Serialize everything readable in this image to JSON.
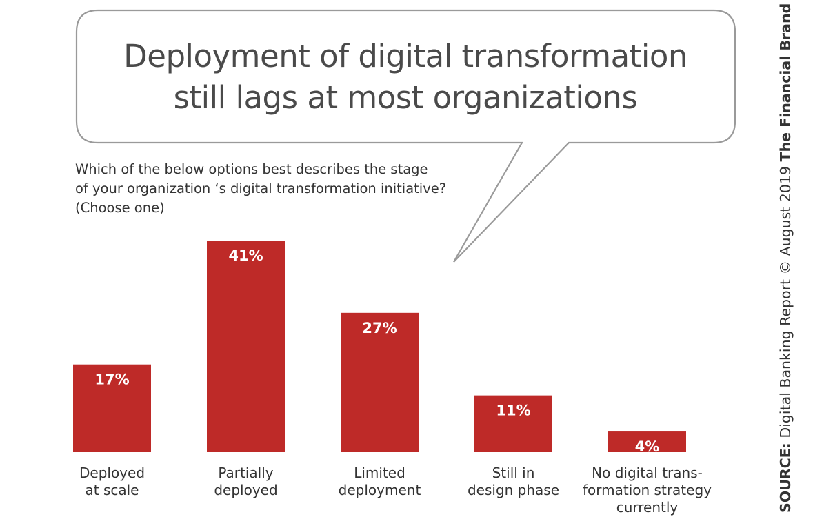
{
  "title_lines": [
    "Deployment of digital transformation",
    "still lags at most organizations"
  ],
  "question_lines": [
    "Which of the below options best describes the stage",
    "of your organization ‘s digital transformation initiative?",
    "(Choose one)"
  ],
  "source": {
    "label": "SOURCE:",
    "report": "Digital Banking Report © August 2019",
    "brand": "The Financial Brand"
  },
  "colors": {
    "bar": "#be2a28",
    "bar_label": "#ffffff",
    "category": "#333333",
    "bubble_stroke": "#9a9a9a",
    "title": "#4a4a4a"
  },
  "chart_data": {
    "type": "bar",
    "title": "Deployment of digital transformation still lags at most organizations",
    "categories": [
      [
        "Deployed",
        "at scale"
      ],
      [
        "Partially",
        "deployed"
      ],
      [
        "Limited",
        "deployment"
      ],
      [
        "Still in",
        "design phase"
      ],
      [
        "No digital trans-",
        "formation strategy",
        "currently"
      ]
    ],
    "values": [
      17,
      41,
      27,
      11,
      4
    ],
    "value_labels": [
      "17%",
      "41%",
      "27%",
      "11%",
      "4%"
    ],
    "unit": "%",
    "ylim": [
      0,
      41
    ],
    "grid": false,
    "legend": "none"
  }
}
